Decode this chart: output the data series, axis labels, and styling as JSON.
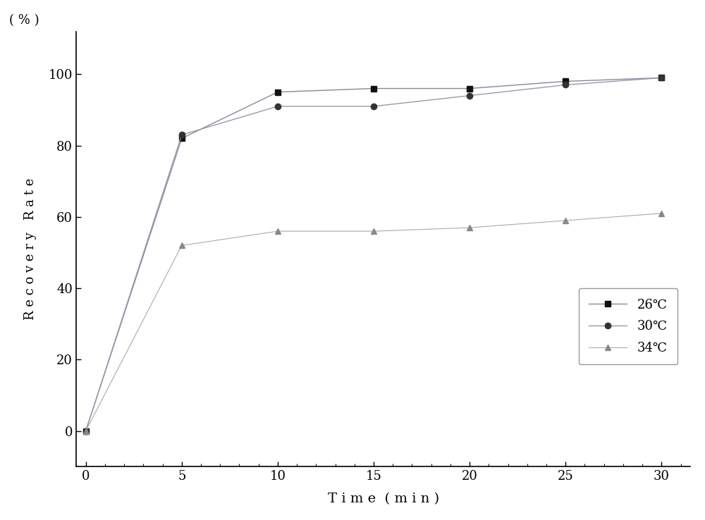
{
  "x": [
    0,
    5,
    10,
    15,
    20,
    25,
    30
  ],
  "series": [
    {
      "label": "26℃",
      "values": [
        0,
        82,
        95,
        96,
        96,
        98,
        99
      ],
      "color": "#888899",
      "marker": "s",
      "markerfacecolor": "#111111",
      "markeredgecolor": "#111111",
      "linestyle": "-",
      "linewidth": 1.0,
      "markersize": 6
    },
    {
      "label": "30℃",
      "values": [
        0,
        83,
        91,
        91,
        94,
        97,
        99
      ],
      "color": "#9999aa",
      "marker": "o",
      "markerfacecolor": "#333333",
      "markeredgecolor": "#333333",
      "linestyle": "-",
      "linewidth": 1.0,
      "markersize": 6
    },
    {
      "label": "34℃",
      "values": [
        0,
        52,
        56,
        56,
        57,
        59,
        61
      ],
      "color": "#aaaaaa",
      "marker": "^",
      "markerfacecolor": "#888888",
      "markeredgecolor": "#888888",
      "linestyle": "-",
      "linewidth": 0.8,
      "markersize": 6
    }
  ],
  "xlabel": "T i m e  ( m i n )",
  "ylabel_top": "( % )",
  "ylabel_main": "R e c o v e r y   R a t e",
  "xlim": [
    -0.5,
    31.5
  ],
  "ylim": [
    -10,
    112
  ],
  "xticks": [
    0,
    5,
    10,
    15,
    20,
    25,
    30
  ],
  "yticks": [
    0,
    20,
    40,
    60,
    80,
    100
  ],
  "figsize": [
    10.0,
    7.38
  ],
  "dpi": 100,
  "background_color": "#ffffff",
  "axes_background": "#ffffff"
}
